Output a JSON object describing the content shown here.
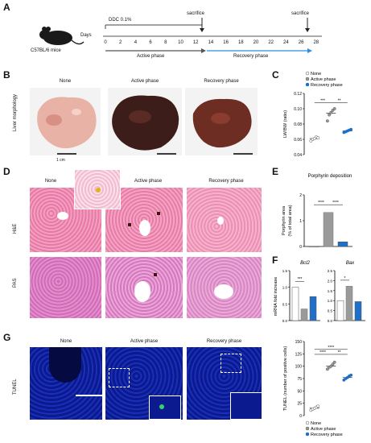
{
  "panels": [
    "A",
    "B",
    "C",
    "D",
    "E",
    "F",
    "G"
  ],
  "panelA": {
    "mouse_label": "C57BL/6 mice",
    "days_label": "Days",
    "treatment": "DDC 0.1%",
    "sacrifice": "sacrifice",
    "days": [
      "0",
      "2",
      "4",
      "6",
      "8",
      "10",
      "12",
      "14",
      "16",
      "18",
      "20",
      "22",
      "24",
      "26",
      "28"
    ],
    "active_phase": "Active phase",
    "recovery_phase": "Recovery phase"
  },
  "panelB": {
    "columns": [
      "None",
      "Active phase",
      "Recovery phase"
    ],
    "row_label": "Liver morphology",
    "scale": "1 cm"
  },
  "panelD": {
    "columns": [
      "None",
      "Active phase",
      "Recovery phase"
    ],
    "rows": [
      "H&E",
      "PAS"
    ]
  },
  "panelG": {
    "columns": [
      "None",
      "Active phase",
      "Recovery phase"
    ],
    "row_label": "TUNEL"
  },
  "legend": [
    "None",
    "Active phase",
    "Recovery phase"
  ],
  "colors": {
    "none": "#ffffff",
    "active": "#9a9a9a",
    "recovery": "#1f6fc9",
    "recovery_line": "#2a8fe0",
    "he": "#e86b9a",
    "pas": "#cc5fb2",
    "tunel": "#0b1a8f"
  },
  "chart_data": [
    {
      "panel": "C",
      "type": "scatter",
      "ylabel": "LW/BW (ratio)",
      "ylim": [
        0.04,
        0.12
      ],
      "yticks": [
        "0.04",
        "0.06",
        "0.08",
        "0.10",
        "0.12"
      ],
      "series": [
        {
          "name": "None",
          "mean": 0.061,
          "points": [
            0.058,
            0.06,
            0.061,
            0.063,
            0.062
          ]
        },
        {
          "name": "Active phase",
          "mean": 0.094,
          "points": [
            0.084,
            0.092,
            0.095,
            0.098,
            0.1
          ]
        },
        {
          "name": "Recovery phase",
          "mean": 0.071,
          "points": [
            0.069,
            0.07,
            0.071,
            0.072,
            0.073
          ]
        }
      ],
      "significance": [
        "***",
        "**"
      ]
    },
    {
      "panel": "E",
      "type": "bar",
      "title": "Porphyrin deposition",
      "ylabel": "Porphyrin area (% of total area)",
      "ylim": [
        0,
        2
      ],
      "yticks": [
        "0",
        "1",
        "2"
      ],
      "categories": [
        "None",
        "Active phase",
        "Recovery phase"
      ],
      "values": [
        0.0,
        1.32,
        0.18
      ],
      "significance": [
        "****",
        "****"
      ]
    },
    {
      "panel": "F",
      "type": "bar",
      "ylabel": "mRNA fold increase",
      "genes": [
        {
          "name": "Bcl2",
          "ylim": [
            0,
            1.5
          ],
          "yticks": [
            "0.0",
            "0.5",
            "1.0",
            "1.5"
          ],
          "values": [
            1.0,
            0.35,
            0.72
          ],
          "significance": [
            "***"
          ]
        },
        {
          "name": "Bax",
          "ylim": [
            0,
            2.5
          ],
          "yticks": [
            "0.0",
            "0.5",
            "1.0",
            "1.5",
            "2.0",
            "2.5"
          ],
          "values": [
            1.0,
            1.72,
            0.95
          ],
          "significance": [
            "*"
          ]
        }
      ]
    },
    {
      "panel": "G",
      "type": "scatter",
      "ylabel": "TUNEL (number of positive cells)",
      "ylim": [
        0,
        150
      ],
      "yticks": [
        "0",
        "25",
        "50",
        "75",
        "100",
        "125",
        "150"
      ],
      "series": [
        {
          "name": "None",
          "mean": 15,
          "points": [
            11,
            13,
            15,
            17,
            19
          ]
        },
        {
          "name": "Active phase",
          "mean": 100,
          "points": [
            94,
            98,
            100,
            104,
            108
          ]
        },
        {
          "name": "Recovery phase",
          "mean": 77,
          "points": [
            72,
            75,
            77,
            80,
            82
          ]
        }
      ],
      "significance": [
        "****",
        "****",
        "**"
      ]
    }
  ]
}
